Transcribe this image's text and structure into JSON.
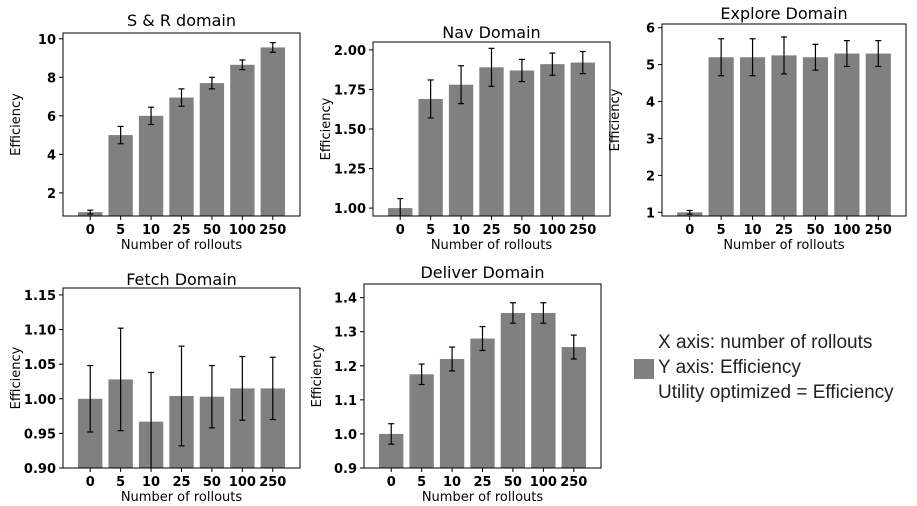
{
  "colors": {
    "bar": "#808080",
    "error": "#000000",
    "text": "#000000"
  },
  "legend": {
    "x_axis_note": "X axis: number of rollouts",
    "y_axis_note": "Y axis: Efficiency",
    "utility_note": "Utility optimized = Efficiency"
  },
  "chart_data": [
    {
      "type": "bar",
      "title": "S & R domain",
      "xlabel": "Number of rollouts",
      "ylabel": "Efficiency",
      "categories": [
        "0",
        "5",
        "10",
        "25",
        "50",
        "100",
        "250"
      ],
      "values": [
        1.0,
        5.0,
        6.0,
        6.95,
        7.7,
        8.65,
        9.55
      ],
      "errors": [
        0.1,
        0.45,
        0.45,
        0.45,
        0.3,
        0.25,
        0.25
      ],
      "ylim": [
        0.8,
        10.3
      ],
      "yticks": [
        "2",
        "4",
        "6",
        "8",
        "10"
      ],
      "grid": false
    },
    {
      "type": "bar",
      "title": "Nav Domain",
      "xlabel": "Number of rollouts",
      "ylabel": "Efficiency",
      "categories": [
        "0",
        "5",
        "10",
        "25",
        "50",
        "100",
        "250"
      ],
      "values": [
        1.0,
        1.69,
        1.78,
        1.89,
        1.87,
        1.91,
        1.92
      ],
      "errors": [
        0.06,
        0.12,
        0.12,
        0.12,
        0.07,
        0.07,
        0.07
      ],
      "ylim": [
        0.95,
        2.05
      ],
      "yticks": [
        "1.00",
        "1.25",
        "1.50",
        "1.75",
        "2.00"
      ],
      "grid": false
    },
    {
      "type": "bar",
      "title": "Explore Domain",
      "xlabel": "Number of rollouts",
      "ylabel": "Efficiency",
      "categories": [
        "0",
        "5",
        "10",
        "25",
        "50",
        "100",
        "250"
      ],
      "values": [
        1.0,
        5.2,
        5.2,
        5.25,
        5.2,
        5.3,
        5.3
      ],
      "errors": [
        0.05,
        0.5,
        0.5,
        0.5,
        0.35,
        0.35,
        0.35
      ],
      "ylim": [
        0.9,
        6.1
      ],
      "yticks": [
        "1",
        "2",
        "3",
        "4",
        "5",
        "6"
      ],
      "grid": false
    },
    {
      "type": "bar",
      "title": "Fetch Domain",
      "xlabel": "Number of rollouts",
      "ylabel": "Efficiency",
      "categories": [
        "0",
        "5",
        "10",
        "25",
        "50",
        "100",
        "250"
      ],
      "values": [
        1.0,
        1.028,
        0.967,
        1.004,
        1.003,
        1.015,
        1.015
      ],
      "errors": [
        0.048,
        0.074,
        0.071,
        0.072,
        0.045,
        0.046,
        0.045
      ],
      "ylim": [
        0.9,
        1.16
      ],
      "yticks": [
        "0.90",
        "0.95",
        "1.00",
        "1.05",
        "1.10",
        "1.15"
      ],
      "grid": false
    },
    {
      "type": "bar",
      "title": "Deliver Domain",
      "xlabel": "Number of rollouts",
      "ylabel": "Efficiency",
      "categories": [
        "0",
        "5",
        "10",
        "25",
        "50",
        "100",
        "250"
      ],
      "values": [
        1.0,
        1.175,
        1.22,
        1.28,
        1.355,
        1.355,
        1.255
      ],
      "errors": [
        0.03,
        0.03,
        0.035,
        0.035,
        0.03,
        0.03,
        0.035
      ],
      "ylim": [
        0.9,
        1.44
      ],
      "yticks": [
        "0.9",
        "1.0",
        "1.1",
        "1.2",
        "1.3",
        "1.4"
      ],
      "grid": false
    }
  ]
}
